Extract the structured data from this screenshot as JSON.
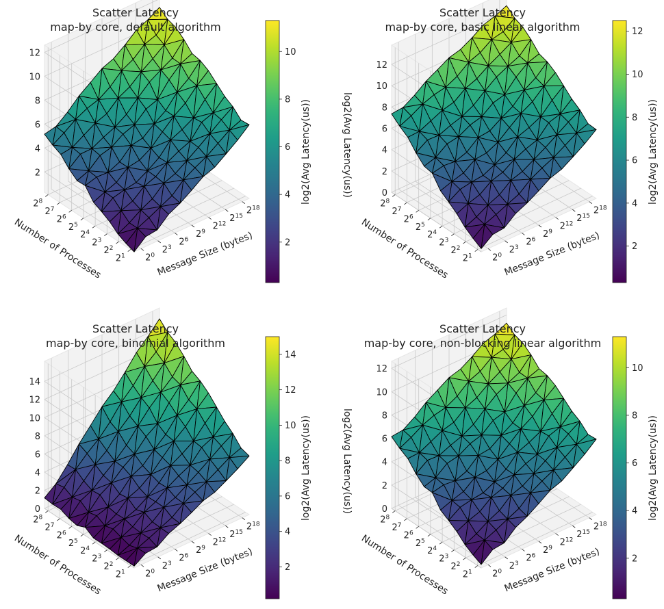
{
  "figure": {
    "cbar_label": "log2(Avg Latency(us))",
    "colormap": "viridis",
    "colormap_stops": [
      "#440154",
      "#482878",
      "#3e4989",
      "#31688e",
      "#26828e",
      "#1f9e89",
      "#35b779",
      "#6ece58",
      "#b5de2b",
      "#fde725"
    ],
    "edge_color": "#000000",
    "pane_color": "#f2f2f2",
    "grid_color": "#c8c8c8"
  },
  "chart_data": [
    {
      "type": "surface",
      "title": "Scatter Latency\nmap-by core, default algorithm",
      "xlabel": "Message Size (bytes)",
      "ylabel": "Number of Processes",
      "zlabel": "log2(Avg Latency(us))",
      "x_ticks": [
        "2^0",
        "2^3",
        "2^6",
        "2^9",
        "2^12",
        "2^15",
        "2^18"
      ],
      "y_ticks": [
        "2^1",
        "2^2",
        "2^3",
        "2^4",
        "2^5",
        "2^6",
        "2^7",
        "2^8"
      ],
      "z_ticks": [
        2,
        4,
        6,
        8,
        10,
        12
      ],
      "zlim": [
        0.3,
        12.6
      ],
      "colorbar_ticks": [
        2,
        4,
        6,
        8,
        10
      ],
      "colorbar_range": [
        0.3,
        11.3
      ],
      "z_min": 0.3,
      "z_max": 11.3,
      "small_message_high_process_latency": 5.0
    },
    {
      "type": "surface",
      "title": "Scatter Latency\nmap-by core, basic linear algorithm",
      "xlabel": "Message Size (bytes)",
      "ylabel": "Number of Processes",
      "zlabel": "log2(Avg Latency(us))",
      "x_ticks": [
        "2^0",
        "2^3",
        "2^6",
        "2^9",
        "2^12",
        "2^15",
        "2^18"
      ],
      "y_ticks": [
        "2^1",
        "2^2",
        "2^3",
        "2^4",
        "2^5",
        "2^6",
        "2^7",
        "2^8"
      ],
      "z_ticks": [
        0,
        2,
        4,
        6,
        8,
        10,
        12
      ],
      "zlim": [
        0,
        13.8
      ],
      "colorbar_ticks": [
        2,
        4,
        6,
        8,
        10,
        12
      ],
      "colorbar_range": [
        0.3,
        12.5
      ],
      "z_min": 0.3,
      "z_max": 12.5,
      "small_message_high_process_latency": 7.2
    },
    {
      "type": "surface",
      "title": "Scatter Latency\nmap-by core, binomial algorithm",
      "xlabel": "Message Size (bytes)",
      "ylabel": "Number of Processes",
      "zlabel": "log2(Avg Latency(us))",
      "x_ticks": [
        "2^0",
        "2^3",
        "2^6",
        "2^9",
        "2^12",
        "2^15",
        "2^18"
      ],
      "y_ticks": [
        "2^1",
        "2^2",
        "2^3",
        "2^4",
        "2^5",
        "2^6",
        "2^7",
        "2^8"
      ],
      "z_ticks": [
        0,
        2,
        4,
        6,
        8,
        10,
        12,
        14
      ],
      "zlim": [
        0,
        16.2
      ],
      "colorbar_ticks": [
        2,
        4,
        6,
        8,
        10,
        12,
        14
      ],
      "colorbar_range": [
        0.2,
        15.0
      ],
      "z_min": 0.2,
      "z_max": 15.0,
      "small_message_high_process_latency": 1.0
    },
    {
      "type": "surface",
      "title": "Scatter Latency\nmap-by core, non-blocking linear algorithm",
      "xlabel": "Message Size (bytes)",
      "ylabel": "Number of Processes",
      "zlabel": "log2(Avg Latency(us))",
      "x_ticks": [
        "2^0",
        "2^3",
        "2^6",
        "2^9",
        "2^12",
        "2^15",
        "2^18"
      ],
      "y_ticks": [
        "2^1",
        "2^2",
        "2^3",
        "2^4",
        "2^5",
        "2^6",
        "2^7",
        "2^8"
      ],
      "z_ticks": [
        0,
        2,
        4,
        6,
        8,
        10,
        12
      ],
      "zlim": [
        0,
        12.6
      ],
      "colorbar_ticks": [
        2,
        4,
        6,
        8,
        10
      ],
      "colorbar_range": [
        0.3,
        11.3
      ],
      "z_min": 0.3,
      "z_max": 11.3,
      "small_message_high_process_latency": 6.0
    }
  ]
}
